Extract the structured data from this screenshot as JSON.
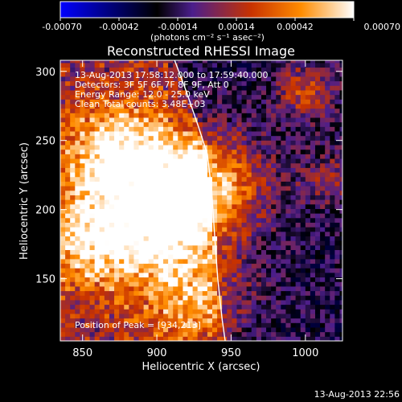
{
  "colorbar": {
    "ticks": [
      -0.0007,
      -0.00042,
      -0.00014,
      0.00014,
      0.00042,
      0.0007
    ],
    "tick_labels": [
      "-0.00070",
      "-0.00042",
      "-0.00014",
      "0.00014",
      "0.00042",
      "0.00070"
    ],
    "unit_label": "(photons cm⁻² s⁻¹ asec⁻²)",
    "colors": [
      "#0000ff",
      "#000000",
      "#4b1e8c",
      "#c83200",
      "#ff8c00",
      "#ffffff"
    ]
  },
  "chart_data": {
    "type": "heatmap",
    "title": "Reconstructed RHESSI Image",
    "xlabel": "Heliocentric X (arcsec)",
    "ylabel": "Heliocentric Y (arcsec)",
    "xlim": [
      835,
      1025
    ],
    "ylim": [
      105,
      308
    ],
    "xticks": [
      850,
      900,
      950,
      1000
    ],
    "yticks": [
      150,
      200,
      250,
      300
    ],
    "value_range": [
      -0.0007,
      0.0007
    ],
    "peak": {
      "x": 934,
      "y": 213
    },
    "limb_curve": [
      [
        912,
        308
      ],
      [
        920,
        285
      ],
      [
        928,
        260
      ],
      [
        934,
        240
      ],
      [
        937,
        213
      ],
      [
        939,
        180
      ],
      [
        941,
        150
      ],
      [
        944,
        120
      ],
      [
        946,
        105
      ]
    ],
    "bright_regions": [
      {
        "x": 875,
        "y": 240,
        "peak": 0.0007
      },
      {
        "x": 935,
        "y": 218,
        "peak": 0.0007
      },
      {
        "x": 858,
        "y": 178,
        "peak": 0.0006
      },
      {
        "x": 905,
        "y": 188,
        "peak": 0.0005
      },
      {
        "x": 925,
        "y": 135,
        "peak": 0.0004
      },
      {
        "x": 1000,
        "y": 285,
        "peak": 0.0004
      },
      {
        "x": 1015,
        "y": 222,
        "peak": 0.00025
      }
    ]
  },
  "overlay": {
    "time_range": "13-Aug-2013 17:58:12.000 to 17:59:40.000",
    "detectors": "Detectors: 3F 5F 6F 7F 8F 9F, Att 0",
    "energy": "Energy Range: 12.0 - 25.0 keV",
    "clean": "Clean    Total counts: 3.48E+03",
    "peak_text": "Position of Peak = [934,213]"
  },
  "footer": {
    "timestamp": "13-Aug-2013 22:56"
  }
}
